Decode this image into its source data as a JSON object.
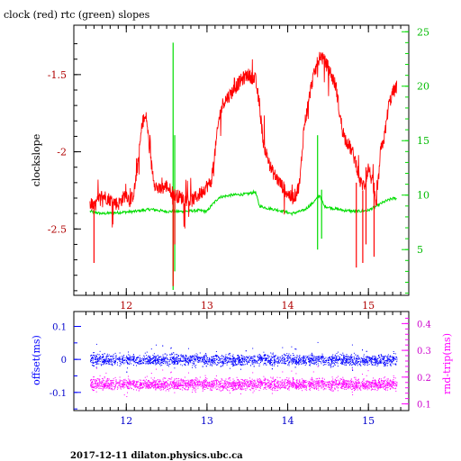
{
  "title": "clock (red) rtc (green) slopes",
  "footer": "2017-12-11  dilaton.physics.ubc.ca",
  "colors": {
    "clock": "#ff0000",
    "rtc": "#00dd00",
    "offset": "#0000ff",
    "rndtrip": "#ff00ff",
    "axis": "#000000"
  },
  "chart_data": [
    {
      "type": "line",
      "title": "clock (red) rtc (green) slopes",
      "xlim": [
        11.35,
        15.5
      ],
      "ylim": [
        -2.93,
        -1.18
      ],
      "y2lim": [
        0.8,
        25.6
      ],
      "x_ticks": [
        "12",
        "13",
        "14",
        "15"
      ],
      "y_ticks": [
        "-1.5",
        "-2",
        "-2.5"
      ],
      "y2_ticks": [
        "5",
        "10",
        "15",
        "20",
        "25"
      ],
      "ylabel": "clockslope",
      "grid": false,
      "series": [
        {
          "name": "clock",
          "axis": "left",
          "x": [
            11.55,
            11.6,
            11.7,
            11.8,
            11.9,
            12.0,
            12.05,
            12.1,
            12.15,
            12.2,
            12.25,
            12.3,
            12.35,
            12.4,
            12.5,
            12.6,
            12.7,
            12.8,
            12.9,
            13.0,
            13.05,
            13.1,
            13.15,
            13.2,
            13.3,
            13.4,
            13.5,
            13.6,
            13.65,
            13.7,
            13.8,
            13.9,
            14.0,
            14.05,
            14.1,
            14.15,
            14.2,
            14.3,
            14.4,
            14.5,
            14.6,
            14.65,
            14.7,
            14.8,
            14.85,
            14.9,
            14.95,
            15.0,
            15.05,
            15.1,
            15.15,
            15.2,
            15.25,
            15.3,
            15.35
          ],
          "values": [
            -2.33,
            -2.36,
            -2.28,
            -2.31,
            -2.34,
            -2.27,
            -2.33,
            -2.25,
            -2.05,
            -1.8,
            -1.78,
            -2.05,
            -2.2,
            -2.25,
            -2.22,
            -2.28,
            -2.3,
            -2.32,
            -2.28,
            -2.22,
            -2.2,
            -2.0,
            -1.78,
            -1.68,
            -1.62,
            -1.55,
            -1.5,
            -1.53,
            -1.7,
            -1.95,
            -2.12,
            -2.2,
            -2.27,
            -2.3,
            -2.28,
            -2.2,
            -1.85,
            -1.55,
            -1.37,
            -1.45,
            -1.58,
            -1.78,
            -1.9,
            -2.0,
            -2.08,
            -2.2,
            -2.22,
            -2.1,
            -2.2,
            -2.35,
            -2.0,
            -1.9,
            -1.7,
            -1.62,
            -1.58
          ]
        },
        {
          "name": "rtc",
          "axis": "right",
          "x": [
            11.55,
            11.7,
            11.9,
            12.1,
            12.3,
            12.5,
            12.7,
            12.9,
            13.0,
            13.05,
            13.15,
            13.3,
            13.5,
            13.6,
            13.65,
            13.75,
            13.9,
            14.05,
            14.2,
            14.3,
            14.4,
            14.45,
            14.55,
            14.7,
            14.85,
            15.0,
            15.1,
            15.2,
            15.3,
            15.35
          ],
          "values": [
            8.5,
            8.3,
            8.4,
            8.5,
            8.7,
            8.5,
            8.5,
            8.6,
            8.5,
            9.0,
            9.8,
            10.0,
            10.1,
            10.3,
            9.0,
            8.8,
            8.6,
            8.3,
            8.6,
            9.2,
            10.0,
            9.0,
            8.8,
            8.6,
            8.5,
            8.6,
            9.0,
            9.4,
            9.7,
            9.7
          ]
        }
      ]
    },
    {
      "type": "scatter",
      "xlim": [
        11.35,
        15.5
      ],
      "ylim": [
        -0.155,
        0.145
      ],
      "y2lim": [
        0.075,
        0.445
      ],
      "x_ticks": [
        "12",
        "13",
        "14",
        "15"
      ],
      "y_ticks": [
        "0.1",
        "0",
        "-0.1"
      ],
      "y2_ticks": [
        "0.1",
        "0.2",
        "0.3",
        "0.4"
      ],
      "ylabel": "offset(ms)",
      "y2label": "rnd-trip(ms)",
      "grid": false,
      "series": [
        {
          "name": "offset",
          "axis": "left",
          "band_center": 0.0,
          "band_halfwidth": 0.012,
          "x_range": [
            11.55,
            15.35
          ]
        },
        {
          "name": "rnd-trip",
          "axis": "right",
          "band_center": 0.175,
          "band_halfwidth": 0.015,
          "x_range": [
            11.55,
            15.35
          ]
        }
      ]
    }
  ]
}
